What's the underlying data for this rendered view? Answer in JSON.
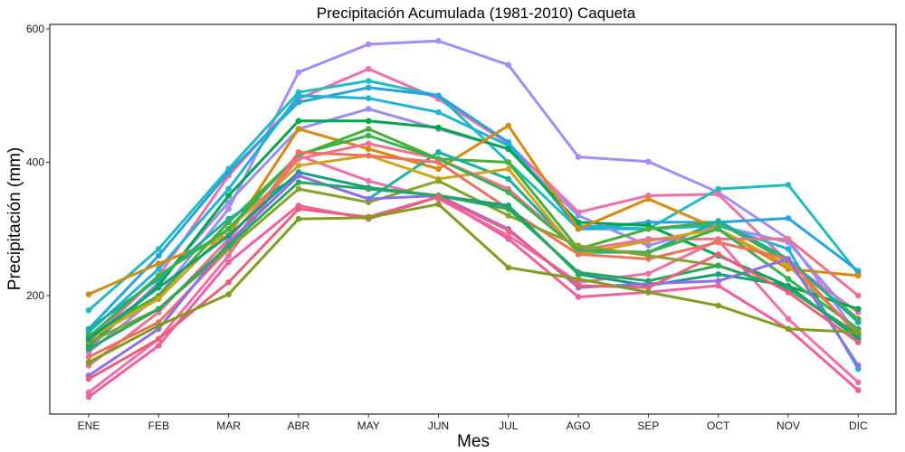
{
  "chart_data": {
    "type": "line",
    "title": "Precipitación Acumulada (1981-2010)  Caqueta",
    "xlabel": "Mes",
    "ylabel": "Precipitación  (mm)",
    "categories": [
      "ENE",
      "FEB",
      "MAR",
      "ABR",
      "MAY",
      "JUN",
      "JUL",
      "AGO",
      "SEP",
      "OCT",
      "NOV",
      "DIC"
    ],
    "ylim": [
      0,
      620
    ],
    "yticks": [
      200,
      400,
      600
    ],
    "grid": false,
    "legend": "none",
    "series": [
      {
        "color": "#a78bfa",
        "values": [
          115,
          200,
          330,
          535,
          577,
          582,
          546,
          408,
          401,
          355,
          285,
          140
        ]
      },
      {
        "color": "#f06eaa",
        "values": [
          130,
          230,
          380,
          495,
          540,
          495,
          428,
          325,
          350,
          352,
          250,
          175
        ]
      },
      {
        "color": "#22bcbc",
        "values": [
          178,
          270,
          390,
          505,
          522,
          500,
          400,
          300,
          300,
          360,
          366,
          233
        ]
      },
      {
        "color": "#28a3e0",
        "values": [
          150,
          260,
          385,
          490,
          512,
          500,
          430,
          300,
          310,
          310,
          316,
          237
        ]
      },
      {
        "color": "#9a8ff0",
        "values": [
          120,
          220,
          340,
          450,
          480,
          450,
          420,
          320,
          275,
          305,
          280,
          160
        ]
      },
      {
        "color": "#1fb3d6",
        "values": [
          145,
          240,
          360,
          500,
          496,
          475,
          425,
          305,
          300,
          305,
          270,
          90
        ]
      },
      {
        "color": "#00a64a",
        "values": [
          125,
          215,
          350,
          462,
          462,
          452,
          420,
          310,
          305,
          260,
          214,
          180
        ]
      },
      {
        "color": "#d68a12",
        "values": [
          202,
          248,
          290,
          450,
          420,
          390,
          455,
          300,
          345,
          300,
          240,
          230
        ]
      },
      {
        "color": "#4cae3a",
        "values": [
          140,
          200,
          310,
          410,
          450,
          405,
          400,
          270,
          300,
          310,
          250,
          165
        ]
      },
      {
        "color": "#f06eaa",
        "values": [
          55,
          135,
          260,
          410,
          372,
          345,
          290,
          220,
          233,
          283,
          165,
          70
        ]
      },
      {
        "color": "#1ab0a0",
        "values": [
          150,
          225,
          315,
          380,
          345,
          415,
          375,
          265,
          265,
          312,
          255,
          160
        ]
      },
      {
        "color": "#cfa418",
        "values": [
          135,
          195,
          300,
          395,
          410,
          375,
          390,
          262,
          282,
          300,
          245,
          145
        ]
      },
      {
        "color": "#f0728a",
        "values": [
          95,
          175,
          285,
          405,
          428,
          405,
          360,
          268,
          285,
          285,
          285,
          200
        ]
      },
      {
        "color": "#37b24d",
        "values": [
          138,
          230,
          300,
          412,
          440,
          405,
          355,
          268,
          265,
          300,
          225,
          150
        ]
      },
      {
        "color": "#f07060",
        "values": [
          108,
          160,
          270,
          415,
          410,
          400,
          330,
          262,
          255,
          280,
          255,
          140
        ]
      },
      {
        "color": "#88a32a",
        "values": [
          130,
          180,
          270,
          360,
          340,
          372,
          320,
          275,
          260,
          245,
          210,
          140
        ]
      },
      {
        "color": "#12a07a",
        "values": [
          135,
          212,
          290,
          385,
          362,
          350,
          335,
          232,
          215,
          232,
          215,
          135
        ]
      },
      {
        "color": "#8f6cf0",
        "values": [
          80,
          150,
          280,
          380,
          345,
          350,
          300,
          212,
          218,
          222,
          255,
          95
        ]
      },
      {
        "color": "#26a85e",
        "values": [
          120,
          180,
          275,
          370,
          360,
          350,
          330,
          235,
          222,
          245,
          210,
          142
        ]
      },
      {
        "color": "#f05fa0",
        "values": [
          48,
          125,
          250,
          335,
          315,
          348,
          285,
          198,
          205,
          215,
          150,
          58
        ]
      },
      {
        "color": "#e8607c",
        "values": [
          75,
          135,
          220,
          330,
          318,
          348,
          298,
          215,
          212,
          262,
          205,
          130
        ]
      },
      {
        "color": "#7f9e1e",
        "values": [
          100,
          155,
          202,
          315,
          317,
          337,
          242,
          225,
          205,
          185,
          150,
          145
        ]
      }
    ]
  }
}
